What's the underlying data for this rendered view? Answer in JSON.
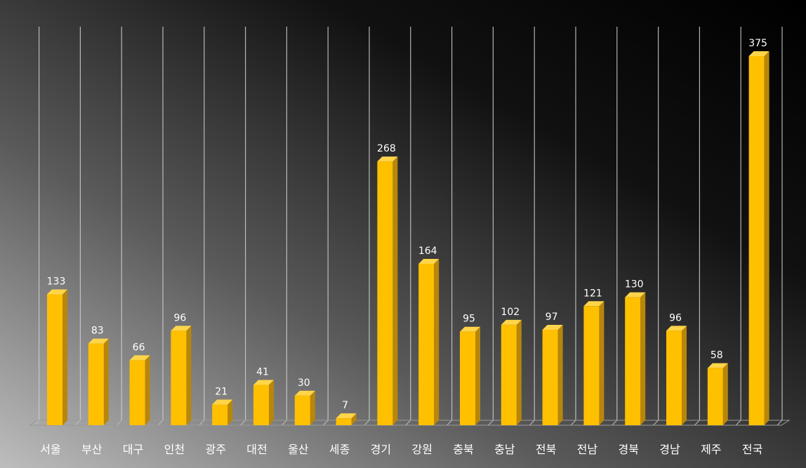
{
  "chart_data": {
    "type": "bar",
    "title": "",
    "xlabel": "",
    "ylabel": "",
    "categories": [
      "서울",
      "부산",
      "대구",
      "인천",
      "광주",
      "대전",
      "울산",
      "세종",
      "경기",
      "강원",
      "충북",
      "충남",
      "전북",
      "전남",
      "경북",
      "경남",
      "제주",
      "전국"
    ],
    "values": [
      133,
      83,
      66,
      96,
      21,
      41,
      30,
      7,
      268,
      164,
      95,
      102,
      97,
      121,
      130,
      96,
      58,
      375
    ],
    "ylim": [
      0,
      400
    ],
    "grid": true,
    "legend": "none",
    "bar_color": "#FFC000",
    "bar_side_color": "#B8860B",
    "label_color": "#FFFFFF"
  }
}
